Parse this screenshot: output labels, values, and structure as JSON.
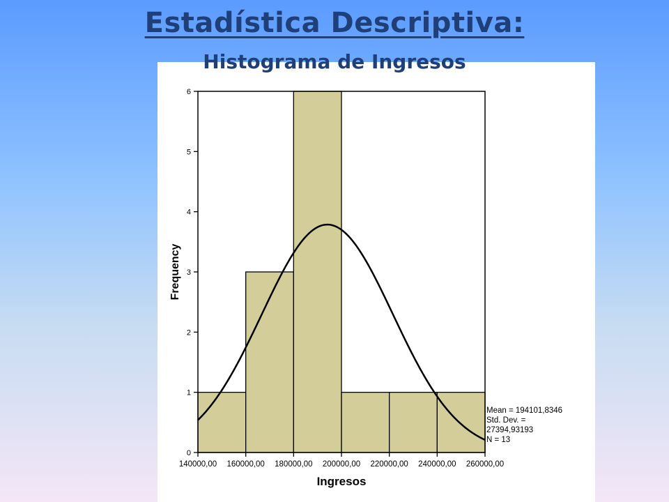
{
  "page": {
    "title": "Estadística Descriptiva:",
    "subtitle": "Histograma de Ingresos"
  },
  "chart_data": {
    "type": "histogram",
    "xlabel": "Ingresos",
    "ylabel": "Frequency",
    "bins": [
      {
        "start": 140000,
        "end": 160000,
        "count": 1
      },
      {
        "start": 160000,
        "end": 180000,
        "count": 3
      },
      {
        "start": 180000,
        "end": 200000,
        "count": 6
      },
      {
        "start": 200000,
        "end": 220000,
        "count": 1
      },
      {
        "start": 220000,
        "end": 240000,
        "count": 1
      },
      {
        "start": 240000,
        "end": 260000,
        "count": 1
      }
    ],
    "xlim": [
      140000,
      260000
    ],
    "ylim": [
      0,
      6
    ],
    "x_ticks": [
      "140000,00",
      "160000,00",
      "180000,00",
      "200000,00",
      "220000,00",
      "240000,00",
      "260000,00"
    ],
    "y_ticks": [
      "0",
      "1",
      "2",
      "3",
      "4",
      "5",
      "6"
    ],
    "normal_curve": {
      "mean": 194101.8346,
      "std_dev": 27394.93193,
      "n": 13
    },
    "stats_lines": [
      "Mean = 194101,8346",
      "Std. Dev. =",
      "27394,93193",
      "N = 13"
    ],
    "bar_color": "#d2cd99",
    "grid": false
  }
}
